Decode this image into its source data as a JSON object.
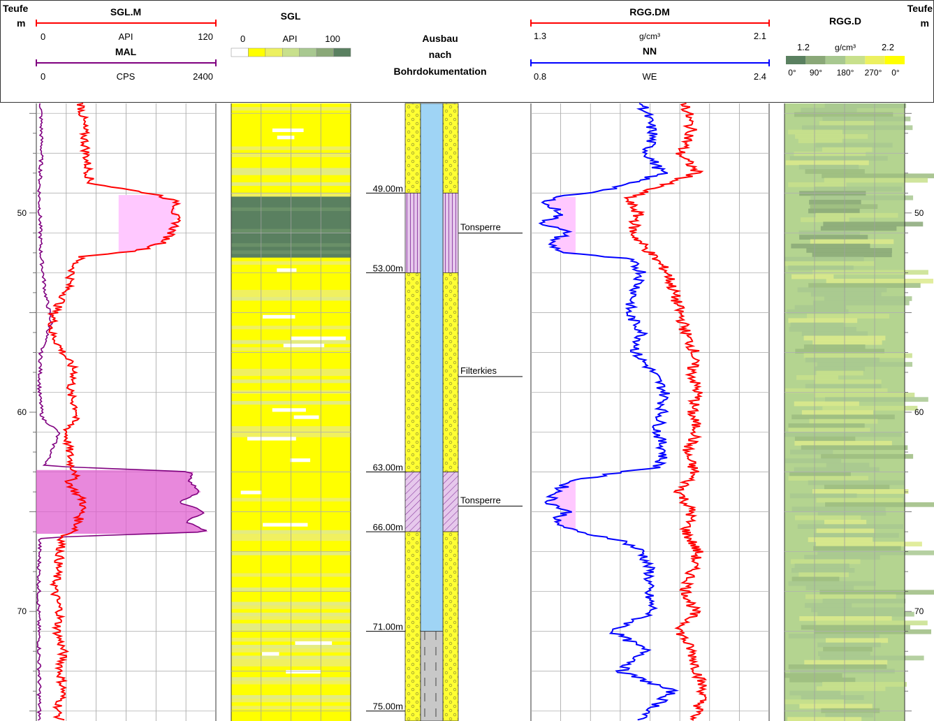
{
  "header": {
    "depth_left": {
      "title": "Teufe",
      "unit": "m"
    },
    "depth_right": {
      "title": "Teufe",
      "unit": "m"
    },
    "track1": {
      "curve1": {
        "name": "SGL.M",
        "unit": "API",
        "min": "0",
        "max": "120",
        "color": "#ff0000"
      },
      "curve2": {
        "name": "MAL",
        "unit": "CPS",
        "min": "0",
        "max": "2400",
        "color": "#800080"
      }
    },
    "track2": {
      "name": "SGL",
      "unit": "API",
      "min": "0",
      "max": "100"
    },
    "track3": {
      "line1": "Ausbau",
      "line2": "nach",
      "line3": "Bohrdokumentation"
    },
    "track4": {
      "curve1": {
        "name": "RGG.DM",
        "unit": "g/cm³",
        "min": "1.3",
        "max": "2.1",
        "color": "#ff0000"
      },
      "curve2": {
        "name": "NN",
        "unit": "WE",
        "min": "0.8",
        "max": "2.4",
        "color": "#0000ff"
      }
    },
    "track5": {
      "name": "RGG.D",
      "unit": "g/cm³",
      "min": "1.2",
      "max": "2.2",
      "angles": [
        "0°",
        "90°",
        "180°",
        "270°",
        "0°"
      ]
    }
  },
  "colors": {
    "sgl_scale": [
      "#ffffff",
      "#ffff00",
      "#ecf060",
      "#c8e08c",
      "#a8c890",
      "#8aa878",
      "#5a8060"
    ],
    "rgg_scale": [
      "#5a8060",
      "#8aa878",
      "#a8c890",
      "#c8e08c",
      "#ecf060",
      "#ffff00"
    ],
    "gravel": "#ffff33",
    "casing": "#9fd4f5",
    "clay": "#d9a8e6",
    "fill_pink": "#ffc8ff",
    "fill_magenta": "#e060d0"
  },
  "chart_data": {
    "type": "line",
    "x_label": "Teufe (m)",
    "depth_range": [
      44.5,
      75.5
    ],
    "depth_ticks": [
      "50",
      "60",
      "70"
    ],
    "completion": {
      "depth_labels": [
        "49.00m",
        "53.00m",
        "63.00m",
        "66.00m",
        "71.00m",
        "75.00m"
      ],
      "intervals": [
        {
          "top": 44.5,
          "bottom": 49.0,
          "fill": "gravel"
        },
        {
          "top": 49.0,
          "bottom": 53.0,
          "fill": "clay_seal"
        },
        {
          "top": 53.0,
          "bottom": 63.0,
          "fill": "gravel"
        },
        {
          "top": 63.0,
          "bottom": 66.0,
          "fill": "clay_seal_hatched"
        },
        {
          "top": 66.0,
          "bottom": 75.5,
          "fill": "gravel"
        }
      ],
      "screen_top": 71.0,
      "annotations": [
        {
          "text": "Tonsperre",
          "depth": 50.8
        },
        {
          "text": "Filterkies",
          "depth": 58.0
        },
        {
          "text": "Tonsperre",
          "depth": 64.5
        }
      ]
    },
    "series": [
      {
        "name": "SGL.M",
        "unit": "API",
        "range": [
          0,
          120
        ],
        "depth": [
          44.5,
          46,
          47.5,
          48.5,
          49.1,
          49.5,
          50.0,
          50.5,
          51.0,
          51.5,
          51.9,
          52.2,
          52.5,
          53.0,
          54,
          55,
          56,
          57,
          58,
          59,
          60,
          61,
          62,
          62.8,
          63.0,
          63.5,
          64,
          64.5,
          65,
          65.5,
          66.0,
          66.2,
          67,
          68,
          69,
          70,
          71,
          72,
          73,
          74,
          75,
          75.5
        ],
        "values": [
          30,
          32,
          34,
          36,
          82,
          95,
          92,
          94,
          90,
          85,
          68,
          30,
          26,
          24,
          20,
          12,
          10,
          18,
          26,
          22,
          28,
          20,
          22,
          24,
          28,
          22,
          26,
          32,
          30,
          28,
          26,
          18,
          16,
          14,
          12,
          16,
          14,
          18,
          16,
          18,
          14,
          16
        ]
      },
      {
        "name": "MAL",
        "unit": "CPS",
        "range": [
          0,
          2400
        ],
        "depth": [
          44.5,
          47,
          49,
          52,
          54,
          55.5,
          57,
          59,
          60.3,
          61,
          62,
          62.7,
          63.0,
          63.5,
          64,
          64.5,
          65,
          65.5,
          66.0,
          66.3,
          67,
          70,
          73,
          75.5
        ],
        "values": [
          60,
          70,
          40,
          60,
          120,
          200,
          60,
          40,
          80,
          300,
          200,
          120,
          2100,
          2050,
          2200,
          1900,
          2250,
          2000,
          2300,
          50,
          40,
          30,
          40,
          40
        ]
      },
      {
        "name": "NN",
        "unit": "WE",
        "range": [
          0.8,
          2.4
        ],
        "depth": [
          44.5,
          46,
          47,
          48,
          48.8,
          49.2,
          49.6,
          50.0,
          50.5,
          51,
          51.5,
          52,
          52.3,
          53,
          54,
          55,
          56,
          57,
          58,
          59,
          60,
          61,
          62,
          62.8,
          63.0,
          63.5,
          64,
          64.5,
          65,
          65.5,
          66.0,
          66.4,
          67,
          68,
          69,
          70,
          71,
          72,
          73,
          74,
          75,
          75.5
        ],
        "values": [
          1.55,
          1.62,
          1.58,
          1.68,
          1.35,
          0.95,
          0.9,
          1.02,
          0.88,
          1.05,
          0.92,
          1.02,
          1.45,
          1.55,
          1.5,
          1.45,
          1.55,
          1.5,
          1.62,
          1.7,
          1.68,
          1.65,
          1.7,
          1.65,
          1.4,
          1.05,
          0.98,
          0.92,
          1.05,
          0.95,
          1.1,
          1.4,
          1.55,
          1.6,
          1.58,
          1.62,
          1.35,
          1.58,
          1.4,
          1.75,
          1.6,
          1.5
        ]
      },
      {
        "name": "RGG.DM",
        "unit": "g/cm³",
        "range": [
          1.3,
          2.1
        ],
        "depth": [
          44.5,
          46,
          47,
          48,
          48.8,
          49.3,
          50.0,
          51,
          52,
          53,
          54,
          55,
          56,
          57,
          58,
          59,
          60,
          61,
          62,
          63,
          64,
          65,
          66,
          67,
          68,
          69,
          70,
          71,
          72,
          73,
          74,
          75,
          75.5
        ],
        "values": [
          1.82,
          1.84,
          1.8,
          1.86,
          1.7,
          1.62,
          1.66,
          1.64,
          1.7,
          1.76,
          1.78,
          1.8,
          1.82,
          1.85,
          1.84,
          1.86,
          1.84,
          1.86,
          1.82,
          1.85,
          1.8,
          1.84,
          1.82,
          1.86,
          1.84,
          1.82,
          1.85,
          1.8,
          1.84,
          1.86,
          1.88,
          1.86,
          1.84
        ]
      }
    ]
  }
}
